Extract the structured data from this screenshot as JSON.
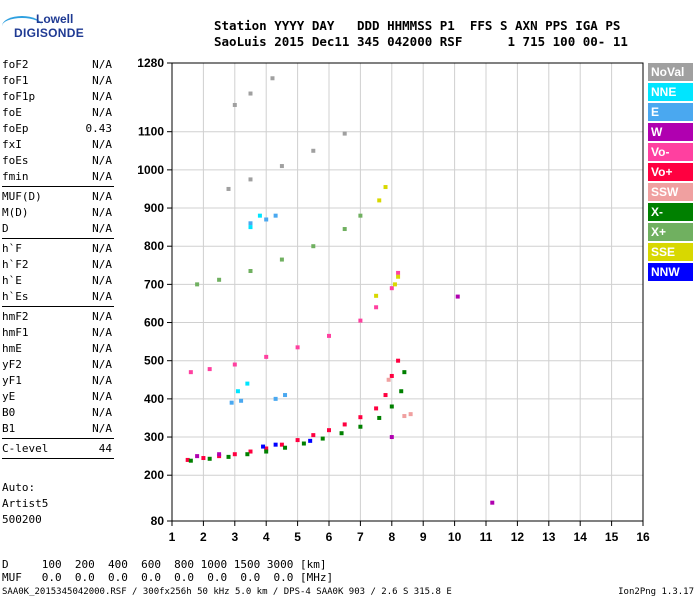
{
  "logo": {
    "line1": "Lowell",
    "line2": "DIGISONDE"
  },
  "header": {
    "row1": "Station YYYY DAY   DDD HHMMSS P1  FFS S AXN PPS IGA PS",
    "row2": "SaoLuis 2015 Dec11 345 042000 RSF      1 715 100 00- 11"
  },
  "params": [
    {
      "name": "foF2",
      "value": "N/A"
    },
    {
      "name": "foF1",
      "value": "N/A"
    },
    {
      "name": "foF1p",
      "value": "N/A"
    },
    {
      "name": "foE",
      "value": "N/A"
    },
    {
      "name": "foEp",
      "value": "0.43"
    },
    {
      "name": "fxI",
      "value": "N/A"
    },
    {
      "name": "foEs",
      "value": "N/A"
    },
    {
      "name": "fmin",
      "value": "N/A"
    },
    {
      "sep": true
    },
    {
      "name": "MUF(D)",
      "value": "N/A"
    },
    {
      "name": "M(D)",
      "value": "N/A"
    },
    {
      "name": "D",
      "value": "N/A"
    },
    {
      "sep": true
    },
    {
      "name": "h`F",
      "value": "N/A"
    },
    {
      "name": "h`F2",
      "value": "N/A"
    },
    {
      "name": "h`E",
      "value": "N/A"
    },
    {
      "name": "h`Es",
      "value": "N/A"
    },
    {
      "sep": true
    },
    {
      "name": "hmF2",
      "value": "N/A"
    },
    {
      "name": "hmF1",
      "value": "N/A"
    },
    {
      "name": "hmE",
      "value": "N/A"
    },
    {
      "name": "yF2",
      "value": "N/A"
    },
    {
      "name": "yF1",
      "value": "N/A"
    },
    {
      "name": "yE",
      "value": "N/A"
    },
    {
      "name": "B0",
      "value": "N/A"
    },
    {
      "name": "B1",
      "value": "N/A"
    },
    {
      "sep": true
    },
    {
      "name": "C-level",
      "value": "44"
    },
    {
      "sep": true
    }
  ],
  "auto": {
    "line1": "Auto:",
    "line2": "Artist5",
    "line3": "500200"
  },
  "legend": [
    {
      "label": "NoVal",
      "color": "#a0a0a0"
    },
    {
      "label": "NNE",
      "color": "#00e5ff"
    },
    {
      "label": "E",
      "color": "#4aa8f0"
    },
    {
      "label": "W",
      "color": "#b000b0"
    },
    {
      "label": "Vo-",
      "color": "#ff40a0"
    },
    {
      "label": "Vo+",
      "color": "#ff0040"
    },
    {
      "label": "SSW",
      "color": "#f0a0a0"
    },
    {
      "label": "X-",
      "color": "#008000"
    },
    {
      "label": "X+",
      "color": "#70b060"
    },
    {
      "label": "SSE",
      "color": "#d8d800"
    },
    {
      "label": "NNW",
      "color": "#0000ff"
    }
  ],
  "dmuf": {
    "row1": "D     100  200  400  600  800 1000 1500 3000 [km]",
    "row2": "MUF   0.0  0.0  0.0  0.0  0.0  0.0  0.0  0.0 [MHz]"
  },
  "footer": "SAA0K_2015345042000.RSF / 300fx256h 50 kHz 5.0 km / DPS-4 SAA0K 903 / 2.6 S 315.8 E",
  "version": "Ion2Png 1.3.17",
  "chart_data": {
    "type": "scatter",
    "title": "",
    "xlabel": "",
    "ylabel": "",
    "xlim": [
      1,
      16
    ],
    "ylim": [
      80,
      1280
    ],
    "x_ticks": [
      1,
      2,
      3,
      4,
      5,
      6,
      7,
      8,
      9,
      10,
      11,
      12,
      13,
      14,
      15,
      16
    ],
    "y_ticks": [
      80,
      200,
      300,
      400,
      500,
      600,
      700,
      800,
      900,
      1000,
      1100,
      1280
    ],
    "grid": true,
    "series": [
      {
        "name": "Vo+",
        "values": [
          [
            1.5,
            240
          ],
          [
            2.0,
            245
          ],
          [
            2.5,
            250
          ],
          [
            3.0,
            255
          ],
          [
            3.5,
            262
          ],
          [
            4.0,
            270
          ],
          [
            4.5,
            280
          ],
          [
            5.0,
            292
          ],
          [
            5.5,
            305
          ],
          [
            6.0,
            318
          ],
          [
            6.5,
            333
          ],
          [
            7.0,
            352
          ],
          [
            7.5,
            375
          ],
          [
            7.8,
            410
          ],
          [
            8.0,
            460
          ],
          [
            8.2,
            500
          ]
        ]
      },
      {
        "name": "X-",
        "values": [
          [
            1.6,
            238
          ],
          [
            2.2,
            243
          ],
          [
            2.8,
            248
          ],
          [
            3.4,
            255
          ],
          [
            4.0,
            262
          ],
          [
            4.6,
            272
          ],
          [
            5.2,
            283
          ],
          [
            5.8,
            296
          ],
          [
            6.4,
            310
          ],
          [
            7.0,
            327
          ],
          [
            7.6,
            350
          ],
          [
            8.0,
            380
          ],
          [
            8.3,
            420
          ],
          [
            8.4,
            470
          ]
        ]
      },
      {
        "name": "Vo-",
        "values": [
          [
            1.6,
            470
          ],
          [
            2.2,
            478
          ],
          [
            3.0,
            490
          ],
          [
            4.0,
            510
          ],
          [
            5.0,
            535
          ],
          [
            6.0,
            565
          ],
          [
            7.0,
            605
          ],
          [
            7.5,
            640
          ],
          [
            8.0,
            690
          ],
          [
            8.2,
            730
          ]
        ]
      },
      {
        "name": "E",
        "values": [
          [
            2.9,
            390
          ],
          [
            3.2,
            395
          ],
          [
            4.3,
            400
          ],
          [
            4.6,
            410
          ],
          [
            3.5,
            860
          ],
          [
            4.0,
            870
          ],
          [
            4.3,
            880
          ]
        ]
      },
      {
        "name": "X+",
        "values": [
          [
            1.8,
            700
          ],
          [
            2.5,
            712
          ],
          [
            3.5,
            735
          ],
          [
            4.5,
            765
          ],
          [
            5.5,
            800
          ],
          [
            6.5,
            845
          ],
          [
            7.0,
            880
          ]
        ]
      },
      {
        "name": "SSE",
        "values": [
          [
            7.5,
            670
          ],
          [
            8.1,
            700
          ],
          [
            8.2,
            720
          ],
          [
            7.6,
            920
          ],
          [
            7.8,
            955
          ]
        ]
      },
      {
        "name": "NNW",
        "values": [
          [
            3.9,
            275
          ],
          [
            4.3,
            280
          ],
          [
            5.4,
            290
          ]
        ]
      },
      {
        "name": "W",
        "values": [
          [
            1.8,
            250
          ],
          [
            2.5,
            255
          ],
          [
            8.0,
            300
          ],
          [
            10.1,
            668
          ],
          [
            11.2,
            128
          ]
        ]
      },
      {
        "name": "NNE",
        "values": [
          [
            3.1,
            420
          ],
          [
            3.4,
            440
          ],
          [
            3.5,
            850
          ],
          [
            3.8,
            880
          ]
        ]
      },
      {
        "name": "SSW",
        "values": [
          [
            8.4,
            355
          ],
          [
            8.6,
            360
          ],
          [
            7.9,
            450
          ]
        ]
      },
      {
        "name": "NoVal",
        "values": [
          [
            2.8,
            950
          ],
          [
            3.5,
            975
          ],
          [
            4.5,
            1010
          ],
          [
            5.5,
            1050
          ],
          [
            6.5,
            1095
          ],
          [
            3.0,
            1170
          ],
          [
            3.5,
            1200
          ],
          [
            4.2,
            1240
          ]
        ]
      }
    ]
  }
}
